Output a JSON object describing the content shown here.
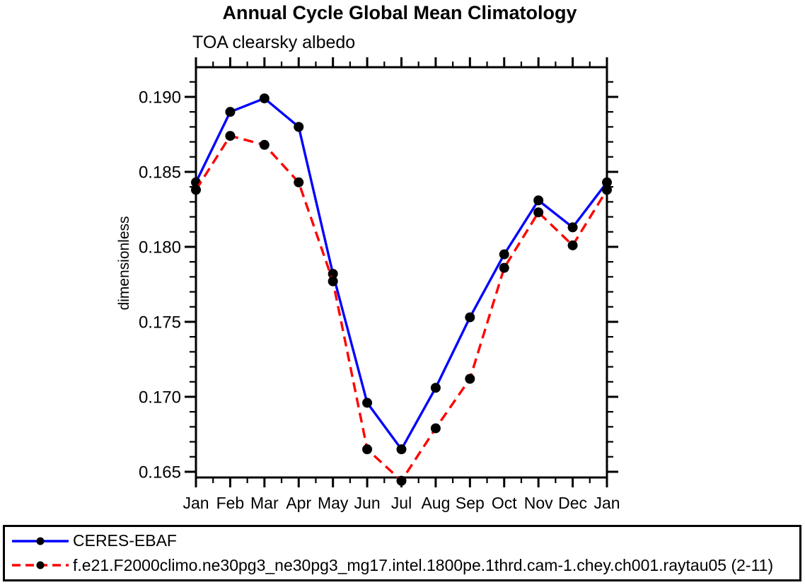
{
  "title": "Annual Cycle Global Mean Climatology",
  "subtitle": "TOA clearsky albedo",
  "chart_data": {
    "type": "line",
    "title": "Annual Cycle Global Mean Climatology",
    "subtitle": "TOA clearsky albedo",
    "xlabel": "",
    "ylabel": "dimensionless",
    "categories": [
      "Jan",
      "Feb",
      "Mar",
      "Apr",
      "May",
      "Jun",
      "Jul",
      "Aug",
      "Sep",
      "Oct",
      "Nov",
      "Dec",
      "Jan"
    ],
    "series": [
      {
        "name": "CERES-EBAF",
        "color": "#0000ff",
        "line_style": "solid",
        "marker": "filled-circle",
        "marker_color": "#000000",
        "values": [
          0.1843,
          0.189,
          0.1899,
          0.188,
          0.1782,
          0.1696,
          0.1665,
          0.1706,
          0.1753,
          0.1795,
          0.1831,
          0.1813,
          0.1843
        ]
      },
      {
        "name": "f.e21.F2000climo.ne30pg3_ne30pg3_mg17.intel.1800pe.1thrd.cam-1.chey.ch001.raytau05 (2-11)",
        "color": "#ff0000",
        "line_style": "dashed",
        "marker": "filled-circle",
        "marker_color": "#000000",
        "values": [
          0.1838,
          0.1874,
          0.1868,
          0.1843,
          0.1777,
          0.1665,
          0.1644,
          0.1679,
          0.1712,
          0.1786,
          0.1823,
          0.1801,
          0.1838
        ]
      }
    ],
    "ylim": [
      0.16462,
      0.19198
    ],
    "yticks_major": [
      0.165,
      0.17,
      0.175,
      0.18,
      0.185,
      0.19
    ],
    "ytick_labels": [
      "0.165",
      "0.170",
      "0.175",
      "0.180",
      "0.185",
      "0.190"
    ],
    "y_minor_step": 0.001,
    "grid": false,
    "legend_position": "bottom-box"
  }
}
